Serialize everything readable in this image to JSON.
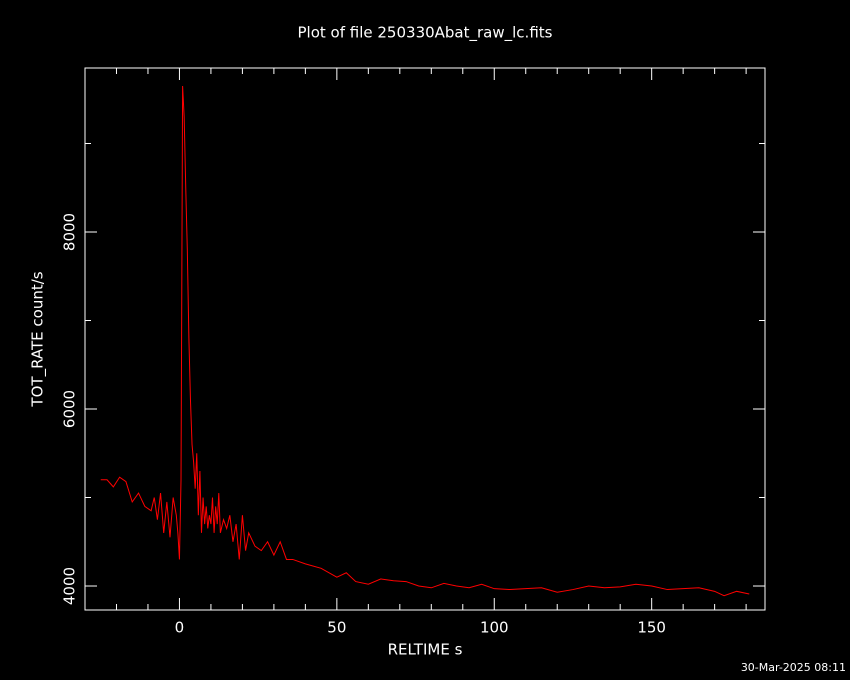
{
  "chart_data": {
    "type": "line",
    "title": "Plot of file 250330Abat_raw_lc.fits",
    "xlabel": "RELTIME  s",
    "ylabel": "TOT_RATE  count/s",
    "footer": "30-Mar-2025 08:11",
    "color": "#ff0000",
    "x": [
      -25,
      -23,
      -21,
      -19,
      -17,
      -15,
      -13,
      -11,
      -9,
      -8,
      -7,
      -6,
      -5,
      -4,
      -3,
      -2,
      -1,
      -0.5,
      0,
      0.5,
      1,
      1.5,
      2,
      2.5,
      3,
      3.5,
      4,
      4.5,
      5,
      5.5,
      6,
      6.5,
      7,
      7.5,
      8,
      8.5,
      9,
      9.5,
      10,
      10.5,
      11,
      11.5,
      12,
      12.5,
      13,
      14,
      15,
      16,
      17,
      18,
      19,
      20,
      21,
      22,
      24,
      26,
      28,
      30,
      32,
      34,
      36,
      40,
      45,
      50,
      53,
      56,
      60,
      64,
      68,
      72,
      76,
      80,
      84,
      88,
      92,
      96,
      100,
      105,
      110,
      115,
      120,
      125,
      130,
      135,
      140,
      145,
      150,
      155,
      160,
      165,
      170,
      173,
      177,
      181
    ],
    "values": [
      5200,
      5200,
      5120,
      5230,
      5180,
      4950,
      5050,
      4900,
      4850,
      5000,
      4750,
      5050,
      4600,
      4950,
      4550,
      5000,
      4800,
      4600,
      4300,
      5200,
      9650,
      9300,
      8500,
      7800,
      6800,
      6100,
      5600,
      5400,
      5100,
      5500,
      4800,
      5300,
      4600,
      5000,
      4700,
      4900,
      4650,
      4800,
      4700,
      5000,
      4600,
      4900,
      4700,
      5050,
      4600,
      4750,
      4650,
      4800,
      4500,
      4700,
      4300,
      4800,
      4400,
      4600,
      4450,
      4400,
      4500,
      4350,
      4500,
      4300,
      4300,
      4250,
      4200,
      4100,
      4150,
      4050,
      4020,
      4080,
      4060,
      4050,
      4000,
      3980,
      4030,
      4000,
      3980,
      4020,
      3970,
      3960,
      3970,
      3980,
      3930,
      3960,
      4000,
      3980,
      3990,
      4020,
      4000,
      3960,
      3970,
      3980,
      3940,
      3890,
      3940,
      3910
    ],
    "xlim": [
      -30,
      186
    ],
    "ylim": [
      3729,
      9853
    ],
    "xticks": [
      0,
      50,
      100,
      150
    ],
    "yticks": [
      4000,
      6000,
      8000
    ],
    "xticks_minor": [
      -20,
      -10,
      10,
      20,
      30,
      40,
      60,
      70,
      80,
      90,
      110,
      120,
      130,
      140,
      160,
      170,
      180
    ],
    "yticks_minor": [
      5000,
      7000,
      9000
    ]
  }
}
